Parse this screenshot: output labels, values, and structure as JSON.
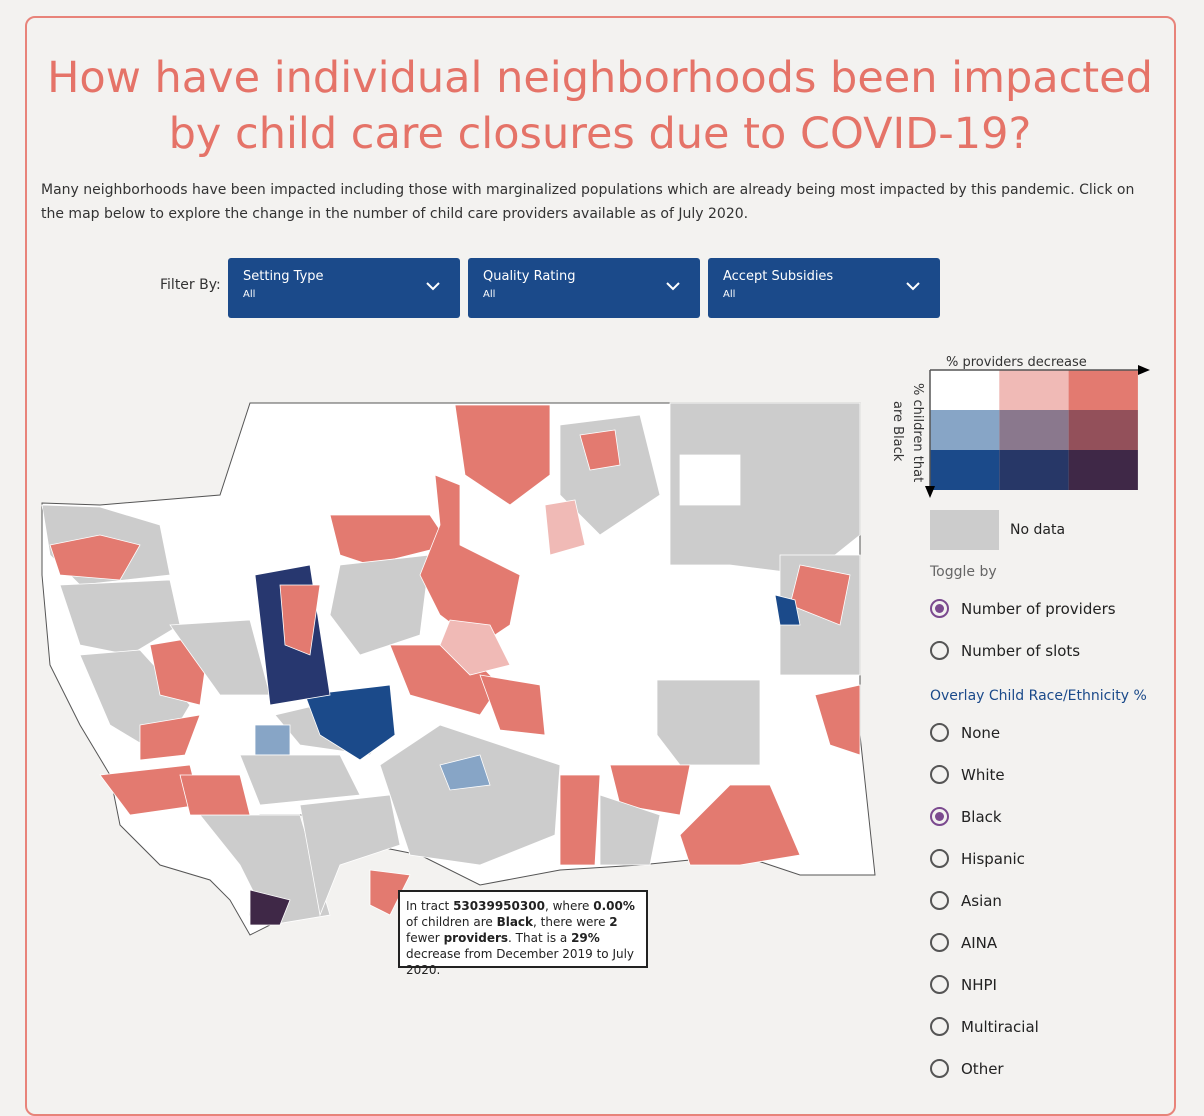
{
  "title": "How have individual neighborhoods been impacted by child care closures due to COVID-19?",
  "intro": "Many neighborhoods have been impacted including those with marginalized populations which are already being most impacted by this pandemic. Click on the map below to explore the change in the number of child care providers available as of July 2020.",
  "filters": {
    "label": "Filter By:",
    "items": [
      {
        "title": "Setting Type",
        "value": "All"
      },
      {
        "title": "Quality Rating",
        "value": "All"
      },
      {
        "title": "Accept Subsidies",
        "value": "All"
      }
    ]
  },
  "legend": {
    "x_label": "% providers decrease",
    "y_label_1": "% children that",
    "y_label_2": "are Black",
    "no_data": "No data",
    "colors": [
      [
        "#ffffff",
        "#f0bab6",
        "#e37a70"
      ],
      [
        "#87a5c6",
        "#8a788d",
        "#93505a"
      ],
      [
        "#1b4a8a",
        "#273767",
        "#3f2847"
      ]
    ],
    "no_data_color": "#cccccc"
  },
  "toggle": {
    "title": "Toggle by",
    "options": [
      "Number of providers",
      "Number of slots"
    ],
    "selected": 0
  },
  "overlay": {
    "title": "Overlay Child Race/Ethnicity %",
    "options": [
      "None",
      "White",
      "Black",
      "Hispanic",
      "Asian",
      "AINA",
      "NHPI",
      "Multiracial",
      "Other"
    ],
    "selected": 2
  },
  "tooltip": {
    "p1": "In tract ",
    "tract": "53039950300",
    "p2": ", where ",
    "pct": "0.00%",
    "p3": " of children are ",
    "race": "Black",
    "p4": ", there were ",
    "count": "2",
    "p5": " fewer ",
    "providers": "providers",
    "p6": ". That is a ",
    "decrease": "29%",
    "p7": " decrease from December 2019 to July 2020."
  }
}
